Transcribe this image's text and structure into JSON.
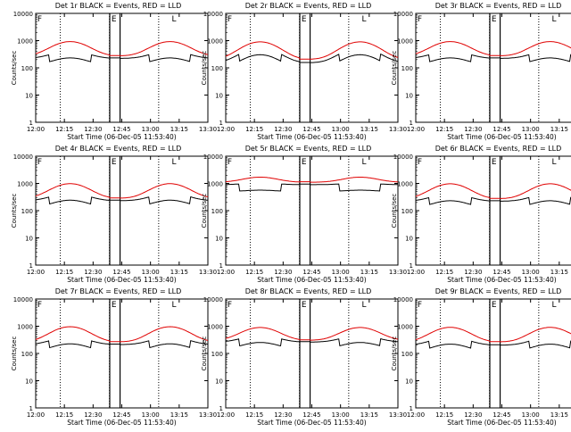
{
  "chart_data": [
    {
      "type": "line",
      "title": "Det 1r BLACK = Events, RED = LLD",
      "xlabel": "Start Time (06-Dec-05 11:53:40)",
      "ylabel": "Counts/sec",
      "x_ticks": [
        "12:00",
        "12:15",
        "12:30",
        "12:45",
        "13:00",
        "13:15",
        "13:30"
      ],
      "y_ticks": [
        "1",
        "10",
        "100",
        "1000",
        "10000"
      ],
      "ylim": [
        1,
        10000
      ],
      "yscale": "log",
      "series": [
        {
          "color": "#000000",
          "profile": "events",
          "base": 220,
          "peak": 200,
          "dip": 120
        },
        {
          "color": "#e00000",
          "profile": "lld",
          "base": 270,
          "peak": 650,
          "dip": 0
        }
      ],
      "markers": [
        "F",
        "E",
        "L"
      ]
    },
    {
      "type": "line",
      "title": "Det 2r BLACK = Events, RED = LLD",
      "xlabel": "Start Time (06-Dec-05 11:53:40)",
      "ylabel": "Counts/sec",
      "x_ticks": [
        "12:00",
        "12:15",
        "12:30",
        "12:45",
        "13:00",
        "13:15",
        "13:30"
      ],
      "y_ticks": [
        "1",
        "10",
        "100",
        "1000",
        "10000"
      ],
      "ylim": [
        1,
        10000
      ],
      "yscale": "log",
      "series": [
        {
          "color": "#000000",
          "profile": "events",
          "base": 150,
          "peak": 400,
          "dip": 110
        },
        {
          "color": "#e00000",
          "profile": "lld",
          "base": 200,
          "peak": 700,
          "dip": 0
        }
      ],
      "markers": [
        "F",
        "E",
        "L"
      ]
    },
    {
      "type": "line",
      "title": "Det 3r BLACK = Events, RED = LLD",
      "xlabel": "Start Time (06-Dec-05 11:53:40)",
      "ylabel": "Counts/sec",
      "x_ticks": [
        "12:00",
        "12:15",
        "12:30",
        "12:45",
        "13:00",
        "13:15",
        "13:30"
      ],
      "y_ticks": [
        "1",
        "10",
        "100",
        "1000",
        "10000"
      ],
      "ylim": [
        1,
        10000
      ],
      "yscale": "log",
      "series": [
        {
          "color": "#000000",
          "profile": "events",
          "base": 220,
          "peak": 200,
          "dip": 120
        },
        {
          "color": "#e00000",
          "profile": "lld",
          "base": 270,
          "peak": 650,
          "dip": 0
        }
      ],
      "markers": [
        "F",
        "E",
        "L"
      ]
    },
    {
      "type": "line",
      "title": "Det 4r BLACK = Events, RED = LLD",
      "xlabel": "Start Time (06-Dec-05 11:53:40)",
      "ylabel": "Counts/sec",
      "x_ticks": [
        "12:00",
        "12:15",
        "12:30",
        "12:45",
        "13:00",
        "13:15",
        "13:30"
      ],
      "y_ticks": [
        "1",
        "10",
        "100",
        "1000",
        "10000"
      ],
      "ylim": [
        1,
        10000
      ],
      "yscale": "log",
      "series": [
        {
          "color": "#000000",
          "profile": "events",
          "base": 230,
          "peak": 210,
          "dip": 120
        },
        {
          "color": "#e00000",
          "profile": "lld",
          "base": 280,
          "peak": 700,
          "dip": 0
        }
      ],
      "markers": [
        "F",
        "E",
        "L"
      ]
    },
    {
      "type": "line",
      "title": "Det 5r BLACK = Events, RED = LLD",
      "xlabel": "Start Time (06-Dec-05 11:53:40)",
      "ylabel": "Counts/sec",
      "x_ticks": [
        "12:00",
        "12:15",
        "12:30",
        "12:45",
        "13:00",
        "13:15",
        "13:30"
      ],
      "y_ticks": [
        "1",
        "10",
        "100",
        "1000",
        "10000"
      ],
      "ylim": [
        1,
        10000
      ],
      "yscale": "log",
      "series": [
        {
          "color": "#000000",
          "profile": "events",
          "base": 900,
          "peak": 130,
          "dip": 60
        },
        {
          "color": "#e00000",
          "profile": "lld",
          "base": 1100,
          "peak": 600,
          "dip": 0
        }
      ],
      "markers": [
        "F",
        "E",
        "L"
      ]
    },
    {
      "type": "line",
      "title": "Det 6r BLACK = Events, RED = LLD",
      "xlabel": "Start Time (06-Dec-05 11:53:40)",
      "ylabel": "Counts/sec",
      "x_ticks": [
        "12:00",
        "12:15",
        "12:30",
        "12:45",
        "13:00",
        "13:15",
        "13:30"
      ],
      "y_ticks": [
        "1",
        "10",
        "100",
        "1000",
        "10000"
      ],
      "ylim": [
        1,
        10000
      ],
      "yscale": "log",
      "series": [
        {
          "color": "#000000",
          "profile": "events",
          "base": 220,
          "peak": 200,
          "dip": 120
        },
        {
          "color": "#e00000",
          "profile": "lld",
          "base": 270,
          "peak": 700,
          "dip": 0
        }
      ],
      "markers": [
        "F",
        "E",
        "L"
      ]
    },
    {
      "type": "line",
      "title": "Det 7r BLACK = Events, RED = LLD",
      "xlabel": "Start Time (06-Dec-05 11:53:40)",
      "ylabel": "Counts/sec",
      "x_ticks": [
        "12:00",
        "12:15",
        "12:30",
        "12:45",
        "13:00",
        "13:15",
        "13:30"
      ],
      "y_ticks": [
        "1",
        "10",
        "100",
        "1000",
        "10000"
      ],
      "ylim": [
        1,
        10000
      ],
      "yscale": "log",
      "series": [
        {
          "color": "#000000",
          "profile": "events",
          "base": 210,
          "peak": 200,
          "dip": 120
        },
        {
          "color": "#e00000",
          "profile": "lld",
          "base": 260,
          "peak": 700,
          "dip": 0
        }
      ],
      "markers": [
        "F",
        "E",
        "L"
      ]
    },
    {
      "type": "line",
      "title": "Det 8r BLACK = Events, RED = LLD",
      "xlabel": "Start Time (06-Dec-05 11:53:40)",
      "ylabel": "Counts/sec",
      "x_ticks": [
        "12:00",
        "12:15",
        "12:30",
        "12:45",
        "13:00",
        "13:15",
        "13:30"
      ],
      "y_ticks": [
        "1",
        "10",
        "100",
        "1000",
        "10000"
      ],
      "ylim": [
        1,
        10000
      ],
      "yscale": "log",
      "series": [
        {
          "color": "#000000",
          "profile": "events",
          "base": 260,
          "peak": 200,
          "dip": 120
        },
        {
          "color": "#e00000",
          "profile": "lld",
          "base": 300,
          "peak": 600,
          "dip": 0
        }
      ],
      "markers": [
        "F",
        "E",
        "L"
      ]
    },
    {
      "type": "line",
      "title": "Det 9r BLACK = Events, RED = LLD",
      "xlabel": "Start Time (06-Dec-05 11:53:40)",
      "ylabel": "Counts/sec",
      "x_ticks": [
        "12:00",
        "12:15",
        "12:30",
        "12:45",
        "13:00",
        "13:15",
        "13:30"
      ],
      "y_ticks": [
        "1",
        "10",
        "100",
        "1000",
        "10000"
      ],
      "ylim": [
        1,
        10000
      ],
      "yscale": "log",
      "series": [
        {
          "color": "#000000",
          "profile": "events",
          "base": 200,
          "peak": 200,
          "dip": 120
        },
        {
          "color": "#e00000",
          "profile": "lld",
          "base": 260,
          "peak": 650,
          "dip": 0
        }
      ],
      "markers": [
        "F",
        "E",
        "L"
      ]
    }
  ]
}
